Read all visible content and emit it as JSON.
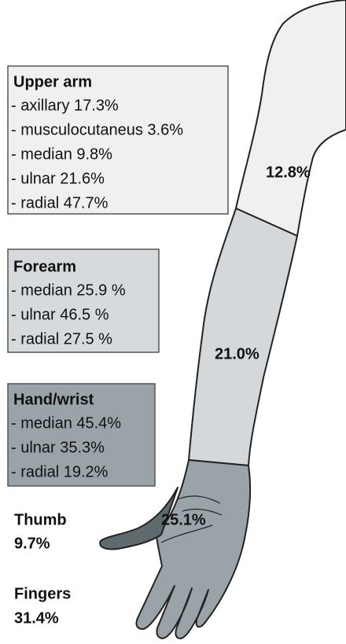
{
  "boxes": [
    {
      "title": "Upper arm",
      "items": [
        "- axillary 17.3%",
        "- musculocutaneus 3.6%",
        "- median 9.8%",
        "- ulnar 21.6%",
        "- radial 47.7%"
      ]
    },
    {
      "title": "Forearm",
      "items": [
        "- median 25.9 %",
        "- ulnar 46.5 %",
        "- radial 27.5 %"
      ]
    },
    {
      "title": "Hand/wrist",
      "items": [
        "- median 45.4%",
        "- ulnar 35.3%",
        "- radial 19.2%"
      ]
    }
  ],
  "region_labels": {
    "upper_arm": "12.8%",
    "forearm": "21.0%",
    "hand": "25.1%"
  },
  "callouts": [
    {
      "label": "Thumb",
      "value": "9.7%"
    },
    {
      "label": "Fingers",
      "value": "31.4%"
    }
  ]
}
